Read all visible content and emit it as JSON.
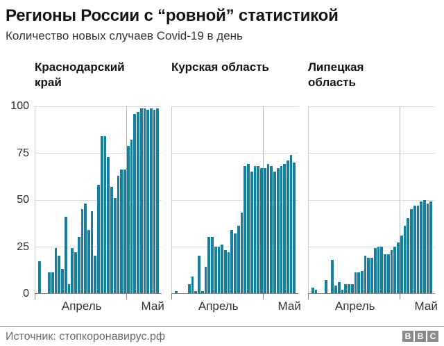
{
  "header": {
    "title": "Регионы России с “ровной” статистикой",
    "subtitle": "Количество новых случаев Covid-19 в день"
  },
  "axis": {
    "y_ticks": [
      "100",
      "75",
      "50",
      "25",
      "0"
    ],
    "x_ticks": [
      "Апрель",
      "Май"
    ]
  },
  "colors": {
    "bar": "#1380a1",
    "gridline": "#dcdcdc",
    "axis": "#808080",
    "bbc_logo_gray": "#8a8a8a"
  },
  "footer": {
    "source": "Источник: стопкоронавирус.рф",
    "logo_letters": [
      "B",
      "B",
      "C"
    ]
  },
  "chart_data": [
    {
      "type": "bar",
      "title": "Краснодарский край",
      "title_lines": [
        "Краснодарский",
        "край"
      ],
      "x_labels": [
        "Апрель",
        "Май"
      ],
      "ylim": [
        0,
        100
      ],
      "y_ticks": [
        0,
        25,
        50,
        75,
        100
      ],
      "grid": true,
      "values": [
        17,
        0,
        0,
        11,
        11,
        24,
        20,
        13,
        41,
        5,
        24,
        22,
        30,
        45,
        48,
        34,
        44,
        20,
        58,
        84,
        84,
        73,
        57,
        51,
        63,
        66,
        66,
        79,
        82,
        96,
        97,
        99,
        99,
        98,
        99,
        98,
        99
      ]
    },
    {
      "type": "bar",
      "title": "Курская область",
      "title_lines": [
        "Курская область"
      ],
      "x_labels": [
        "Апрель",
        "Май"
      ],
      "ylim": [
        0,
        100
      ],
      "y_ticks": [
        0,
        25,
        50,
        75,
        100
      ],
      "grid": true,
      "values": [
        1,
        0,
        0,
        0,
        5,
        9,
        1,
        20,
        1,
        14,
        30,
        30,
        25,
        25,
        26,
        23,
        22,
        34,
        32,
        36,
        43,
        68,
        69,
        65,
        68,
        68,
        67,
        67,
        69,
        68,
        65,
        67,
        68,
        69,
        71,
        74,
        70
      ]
    },
    {
      "type": "bar",
      "title": "Липецкая область",
      "title_lines": [
        "Липецкая",
        "область"
      ],
      "x_labels": [
        "Апрель",
        "Май"
      ],
      "ylim": [
        0,
        100
      ],
      "y_ticks": [
        0,
        25,
        50,
        75,
        100
      ],
      "grid": true,
      "values": [
        3,
        2,
        0,
        0,
        7,
        0,
        18,
        4,
        6,
        2,
        5,
        5,
        5,
        11,
        11,
        12,
        20,
        19,
        19,
        24,
        25,
        25,
        21,
        21,
        23,
        25,
        27,
        31,
        36,
        40,
        45,
        47,
        47,
        49,
        50,
        48,
        49
      ]
    }
  ]
}
